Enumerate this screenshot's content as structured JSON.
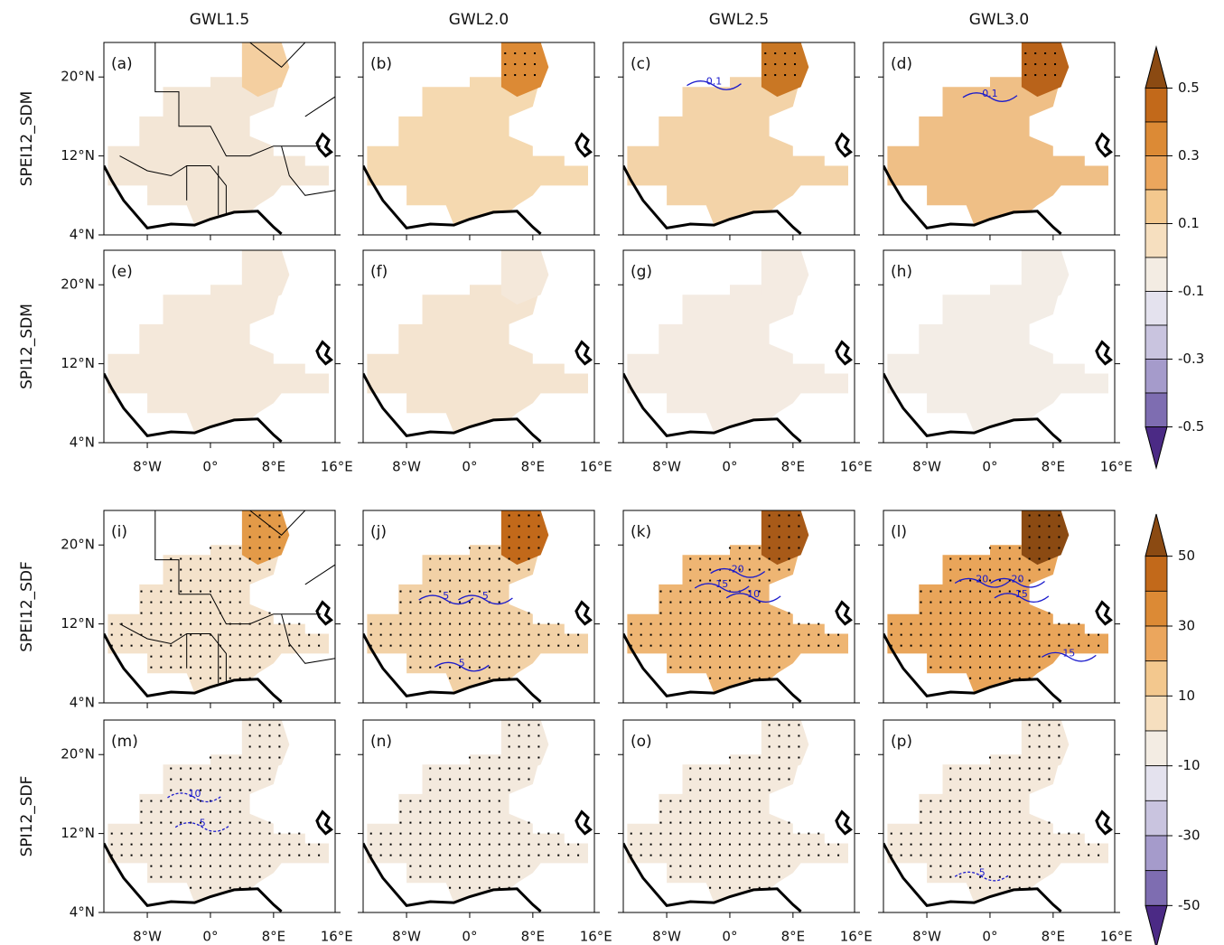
{
  "column_titles": [
    "GWL1.5",
    "GWL2.0",
    "GWL2.5",
    "GWL3.0"
  ],
  "row_labels": [
    "SPEI12_SDM",
    "SPI12_SDM",
    "SPEI12_SDF",
    "SPI12_SDF"
  ],
  "panels": [
    {
      "label": "(a)",
      "contour_labels": []
    },
    {
      "label": "(b)",
      "contour_labels": []
    },
    {
      "label": "(c)",
      "contour_labels": [
        "0.1"
      ]
    },
    {
      "label": "(d)",
      "contour_labels": [
        "0.1"
      ]
    },
    {
      "label": "(e)",
      "contour_labels": []
    },
    {
      "label": "(f)",
      "contour_labels": []
    },
    {
      "label": "(g)",
      "contour_labels": []
    },
    {
      "label": "(h)",
      "contour_labels": []
    },
    {
      "label": "(i)",
      "contour_labels": []
    },
    {
      "label": "(j)",
      "contour_labels": [
        "5",
        "5",
        "5"
      ]
    },
    {
      "label": "(k)",
      "contour_labels": [
        "20",
        "15",
        "10"
      ]
    },
    {
      "label": "(l)",
      "contour_labels": [
        "20",
        "20",
        "15",
        "15"
      ]
    },
    {
      "label": "(m)",
      "contour_labels": [
        "10",
        "5"
      ]
    },
    {
      "label": "(n)",
      "contour_labels": []
    },
    {
      "label": "(o)",
      "contour_labels": []
    },
    {
      "label": "(p)",
      "contour_labels": [
        "5"
      ]
    }
  ],
  "lat_lim": [
    4,
    23.5
  ],
  "lon_lim": [
    -13.5,
    15.8
  ],
  "lat_ticks": [
    {
      "value": 20,
      "label": "20°N"
    },
    {
      "value": 12,
      "label": "12°N"
    },
    {
      "value": 4,
      "label": "4°N"
    }
  ],
  "lon_ticks": [
    {
      "value": -8,
      "label": "8°W"
    },
    {
      "value": 0,
      "label": "0°"
    },
    {
      "value": 8,
      "label": "8°E"
    },
    {
      "value": 16,
      "label": "16°E"
    }
  ],
  "colorbars": [
    {
      "lim": [
        -0.6,
        0.6
      ],
      "ticks": [
        0.5,
        0.3,
        0.1,
        -0.1,
        -0.3,
        -0.5
      ],
      "colors": [
        "#8b4a12",
        "#c2691a",
        "#dc8a35",
        "#eba65d",
        "#f3c88e",
        "#f6dfbf",
        "#f3ece3",
        "#e4e2ee",
        "#c9c4df",
        "#a59bcb",
        "#7e6db1",
        "#4b2a85"
      ]
    },
    {
      "lim": [
        -60,
        60
      ],
      "ticks": [
        50,
        30,
        10,
        -10,
        -30,
        -50
      ],
      "colors": [
        "#8b4a12",
        "#c2691a",
        "#dc8a35",
        "#eba65d",
        "#f3c88e",
        "#f6dfbf",
        "#f3ece3",
        "#e4e2ee",
        "#c9c4df",
        "#a59bcb",
        "#7e6db1",
        "#4b2a85"
      ]
    }
  ]
}
